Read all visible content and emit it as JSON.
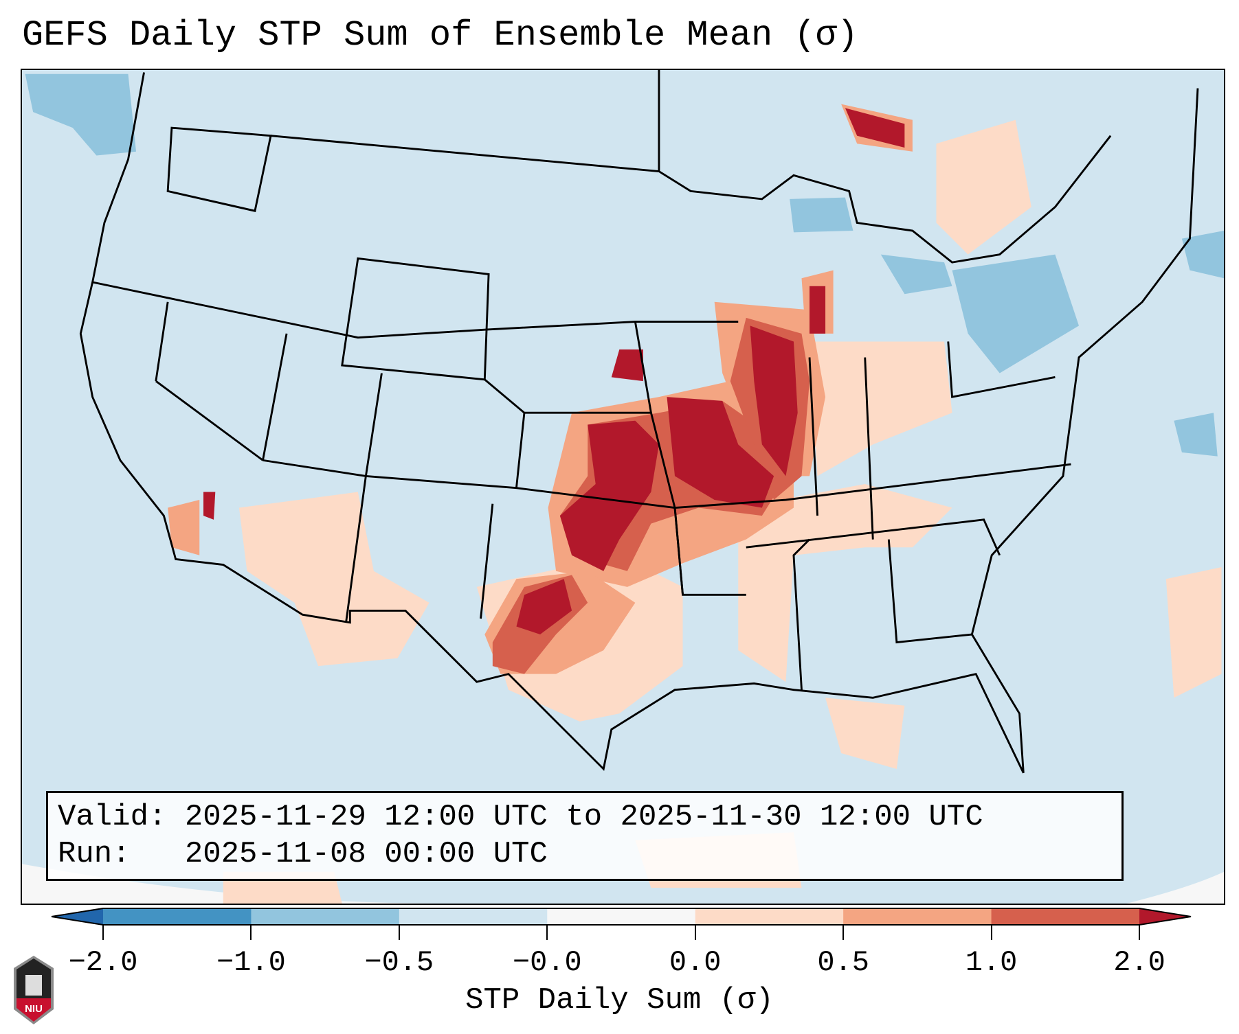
{
  "title": "GEFS Daily STP Sum of Ensemble Mean (σ)",
  "info": {
    "valid_line": "Valid: 2025-11-29 12:00 UTC to 2025-11-30 12:00 UTC",
    "run_line": "Run:   2025-11-08 00:00 UTC"
  },
  "colorbar": {
    "label": "STP Daily Sum (σ)",
    "ticks": [
      "−2.0",
      "−1.0",
      "−0.5",
      "−0.0",
      "0.0",
      "0.5",
      "1.0",
      "2.0"
    ],
    "colors": [
      "#2166ac",
      "#4393c3",
      "#92c5de",
      "#d1e5f0",
      "#f7f7f7",
      "#fddbc7",
      "#f4a582",
      "#d6604d",
      "#b2182b"
    ]
  },
  "logo": {
    "text": "NIU"
  }
}
